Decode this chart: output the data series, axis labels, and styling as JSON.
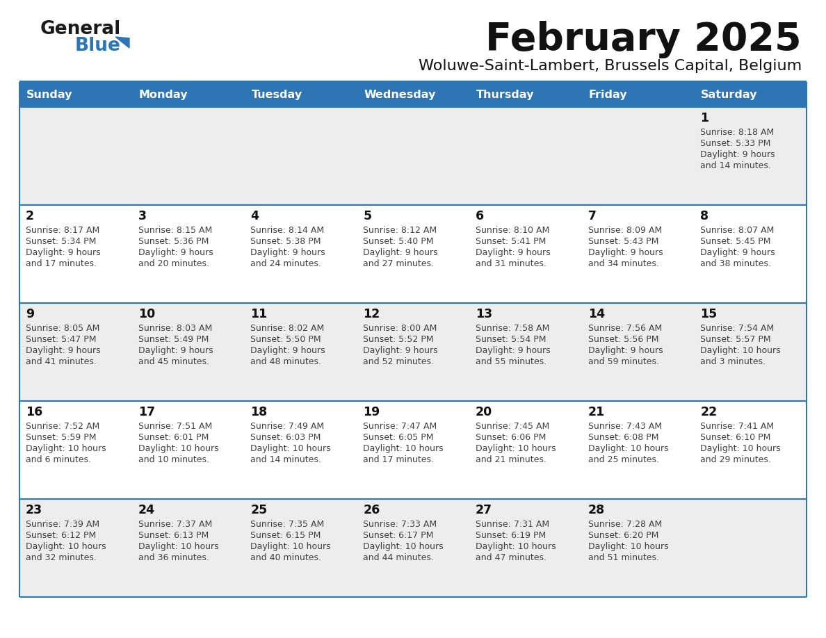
{
  "title": "February 2025",
  "subtitle": "Woluwe-Saint-Lambert, Brussels Capital, Belgium",
  "header_color": "#2E75B6",
  "header_text_color": "#FFFFFF",
  "day_names": [
    "Sunday",
    "Monday",
    "Tuesday",
    "Wednesday",
    "Thursday",
    "Friday",
    "Saturday"
  ],
  "alt_row_color": "#EDEDED",
  "white_color": "#FFFFFF",
  "border_color": "#2E75B6",
  "text_color": "#404040",
  "day_number_color": "#1A1A1A",
  "calendar": [
    [
      null,
      null,
      null,
      null,
      null,
      null,
      1
    ],
    [
      2,
      3,
      4,
      5,
      6,
      7,
      8
    ],
    [
      9,
      10,
      11,
      12,
      13,
      14,
      15
    ],
    [
      16,
      17,
      18,
      19,
      20,
      21,
      22
    ],
    [
      23,
      24,
      25,
      26,
      27,
      28,
      null
    ]
  ],
  "day_data": {
    "1": {
      "sunrise": "8:18 AM",
      "sunset": "5:33 PM",
      "daylight_hours": "9 hours",
      "daylight_minutes": "14 minutes"
    },
    "2": {
      "sunrise": "8:17 AM",
      "sunset": "5:34 PM",
      "daylight_hours": "9 hours",
      "daylight_minutes": "17 minutes"
    },
    "3": {
      "sunrise": "8:15 AM",
      "sunset": "5:36 PM",
      "daylight_hours": "9 hours",
      "daylight_minutes": "20 minutes"
    },
    "4": {
      "sunrise": "8:14 AM",
      "sunset": "5:38 PM",
      "daylight_hours": "9 hours",
      "daylight_minutes": "24 minutes"
    },
    "5": {
      "sunrise": "8:12 AM",
      "sunset": "5:40 PM",
      "daylight_hours": "9 hours",
      "daylight_minutes": "27 minutes"
    },
    "6": {
      "sunrise": "8:10 AM",
      "sunset": "5:41 PM",
      "daylight_hours": "9 hours",
      "daylight_minutes": "31 minutes"
    },
    "7": {
      "sunrise": "8:09 AM",
      "sunset": "5:43 PM",
      "daylight_hours": "9 hours",
      "daylight_minutes": "34 minutes"
    },
    "8": {
      "sunrise": "8:07 AM",
      "sunset": "5:45 PM",
      "daylight_hours": "9 hours",
      "daylight_minutes": "38 minutes"
    },
    "9": {
      "sunrise": "8:05 AM",
      "sunset": "5:47 PM",
      "daylight_hours": "9 hours",
      "daylight_minutes": "41 minutes"
    },
    "10": {
      "sunrise": "8:03 AM",
      "sunset": "5:49 PM",
      "daylight_hours": "9 hours",
      "daylight_minutes": "45 minutes"
    },
    "11": {
      "sunrise": "8:02 AM",
      "sunset": "5:50 PM",
      "daylight_hours": "9 hours",
      "daylight_minutes": "48 minutes"
    },
    "12": {
      "sunrise": "8:00 AM",
      "sunset": "5:52 PM",
      "daylight_hours": "9 hours",
      "daylight_minutes": "52 minutes"
    },
    "13": {
      "sunrise": "7:58 AM",
      "sunset": "5:54 PM",
      "daylight_hours": "9 hours",
      "daylight_minutes": "55 minutes"
    },
    "14": {
      "sunrise": "7:56 AM",
      "sunset": "5:56 PM",
      "daylight_hours": "9 hours",
      "daylight_minutes": "59 minutes"
    },
    "15": {
      "sunrise": "7:54 AM",
      "sunset": "5:57 PM",
      "daylight_hours": "10 hours",
      "daylight_minutes": "3 minutes"
    },
    "16": {
      "sunrise": "7:52 AM",
      "sunset": "5:59 PM",
      "daylight_hours": "10 hours",
      "daylight_minutes": "6 minutes"
    },
    "17": {
      "sunrise": "7:51 AM",
      "sunset": "6:01 PM",
      "daylight_hours": "10 hours",
      "daylight_minutes": "10 minutes"
    },
    "18": {
      "sunrise": "7:49 AM",
      "sunset": "6:03 PM",
      "daylight_hours": "10 hours",
      "daylight_minutes": "14 minutes"
    },
    "19": {
      "sunrise": "7:47 AM",
      "sunset": "6:05 PM",
      "daylight_hours": "10 hours",
      "daylight_minutes": "17 minutes"
    },
    "20": {
      "sunrise": "7:45 AM",
      "sunset": "6:06 PM",
      "daylight_hours": "10 hours",
      "daylight_minutes": "21 minutes"
    },
    "21": {
      "sunrise": "7:43 AM",
      "sunset": "6:08 PM",
      "daylight_hours": "10 hours",
      "daylight_minutes": "25 minutes"
    },
    "22": {
      "sunrise": "7:41 AM",
      "sunset": "6:10 PM",
      "daylight_hours": "10 hours",
      "daylight_minutes": "29 minutes"
    },
    "23": {
      "sunrise": "7:39 AM",
      "sunset": "6:12 PM",
      "daylight_hours": "10 hours",
      "daylight_minutes": "32 minutes"
    },
    "24": {
      "sunrise": "7:37 AM",
      "sunset": "6:13 PM",
      "daylight_hours": "10 hours",
      "daylight_minutes": "36 minutes"
    },
    "25": {
      "sunrise": "7:35 AM",
      "sunset": "6:15 PM",
      "daylight_hours": "10 hours",
      "daylight_minutes": "40 minutes"
    },
    "26": {
      "sunrise": "7:33 AM",
      "sunset": "6:17 PM",
      "daylight_hours": "10 hours",
      "daylight_minutes": "44 minutes"
    },
    "27": {
      "sunrise": "7:31 AM",
      "sunset": "6:19 PM",
      "daylight_hours": "10 hours",
      "daylight_minutes": "47 minutes"
    },
    "28": {
      "sunrise": "7:28 AM",
      "sunset": "6:20 PM",
      "daylight_hours": "10 hours",
      "daylight_minutes": "51 minutes"
    }
  },
  "logo_color_general": "#1A1A1A",
  "logo_color_blue": "#2E75B6",
  "logo_triangle_color": "#2E75B6",
  "figwidth": 11.88,
  "figheight": 9.18,
  "dpi": 100
}
